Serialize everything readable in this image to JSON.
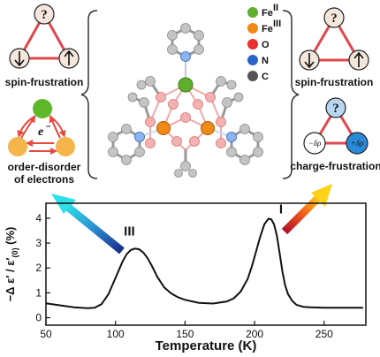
{
  "panels": {
    "top_left_caption": "spin-frustration",
    "middle_left_caption_1": "order-disorder",
    "middle_left_caption_2": "of electrons",
    "electron_label": "e",
    "electron_superscript": "−",
    "top_right_caption": "spin-frustration",
    "middle_right_caption": "charge-frustration",
    "question_mark": "?",
    "charge_minus": "−δρ",
    "charge_plus": "+δρ",
    "legend": {
      "fe2_base": "Fe",
      "fe2_sup": "II",
      "fe3_base": "Fe",
      "fe3_sup": "III",
      "o": "O",
      "n": "N",
      "c": "C"
    }
  },
  "colors": {
    "fe2": "#5fae2e",
    "fe3": "#f08a16",
    "o": "#e83030",
    "n": "#2a64c8",
    "c": "#808080",
    "triangle": "#e0474f",
    "circle_fill": "#f6e7dc"
  },
  "chart_data": {
    "type": "line",
    "xlabel": "Temperature (K)",
    "ylabel_prefix": "−Δ ε′ / ε′",
    "ylabel_sub": "(0)",
    "ylabel_suffix": " (%)",
    "xlim": [
      50,
      280
    ],
    "ylim": [
      -0.3,
      4.6
    ],
    "xticks": [
      50,
      100,
      150,
      200,
      250
    ],
    "yticks": [
      0,
      1,
      2,
      3,
      4
    ],
    "annotations": [
      {
        "text": "III",
        "x": 110,
        "y": 3.3
      },
      {
        "text": "I",
        "x": 219,
        "y": 4.2
      }
    ],
    "x": [
      50,
      60,
      70,
      80,
      85,
      90,
      95,
      100,
      105,
      108,
      111,
      114,
      117,
      120,
      123,
      126,
      130,
      135,
      140,
      145,
      150,
      160,
      170,
      180,
      185,
      190,
      195,
      198,
      201,
      204,
      207,
      210,
      212,
      214,
      216,
      218,
      220,
      222,
      224,
      227,
      230,
      235,
      240,
      250,
      260,
      270,
      278
    ],
    "y": [
      0.58,
      0.5,
      0.42,
      0.38,
      0.4,
      0.55,
      0.95,
      1.6,
      2.25,
      2.55,
      2.72,
      2.78,
      2.75,
      2.62,
      2.4,
      2.1,
      1.65,
      1.22,
      0.98,
      0.82,
      0.72,
      0.6,
      0.57,
      0.65,
      0.78,
      1.05,
      1.55,
      2.05,
      2.65,
      3.25,
      3.75,
      3.98,
      3.95,
      3.75,
      3.3,
      2.6,
      1.85,
      1.3,
      0.95,
      0.68,
      0.52,
      0.44,
      0.42,
      0.4,
      0.4,
      0.4,
      0.4
    ]
  }
}
